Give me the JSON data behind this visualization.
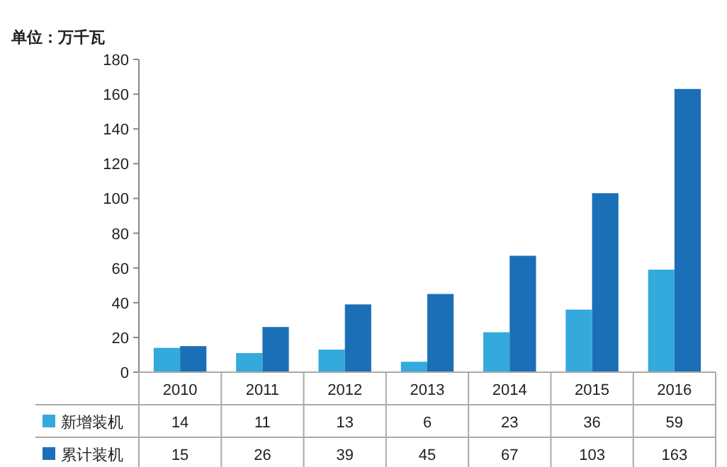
{
  "chart_data": {
    "type": "bar",
    "ylabel": "单位：万千瓦",
    "categories": [
      "2010",
      "2011",
      "2012",
      "2013",
      "2014",
      "2015",
      "2016"
    ],
    "series": [
      {
        "name": "新增装机",
        "color": "#33a9dc",
        "values": [
          14,
          11,
          13,
          6,
          23,
          36,
          59
        ]
      },
      {
        "name": "累计装机",
        "color": "#1b6fb6",
        "values": [
          15,
          26,
          39,
          45,
          67,
          103,
          163
        ]
      }
    ],
    "ylim": [
      0,
      180
    ],
    "yticks": [
      0,
      20,
      40,
      60,
      80,
      100,
      120,
      140,
      160,
      180
    ],
    "grid": false,
    "legend": "bottom left",
    "data_labels": true
  }
}
